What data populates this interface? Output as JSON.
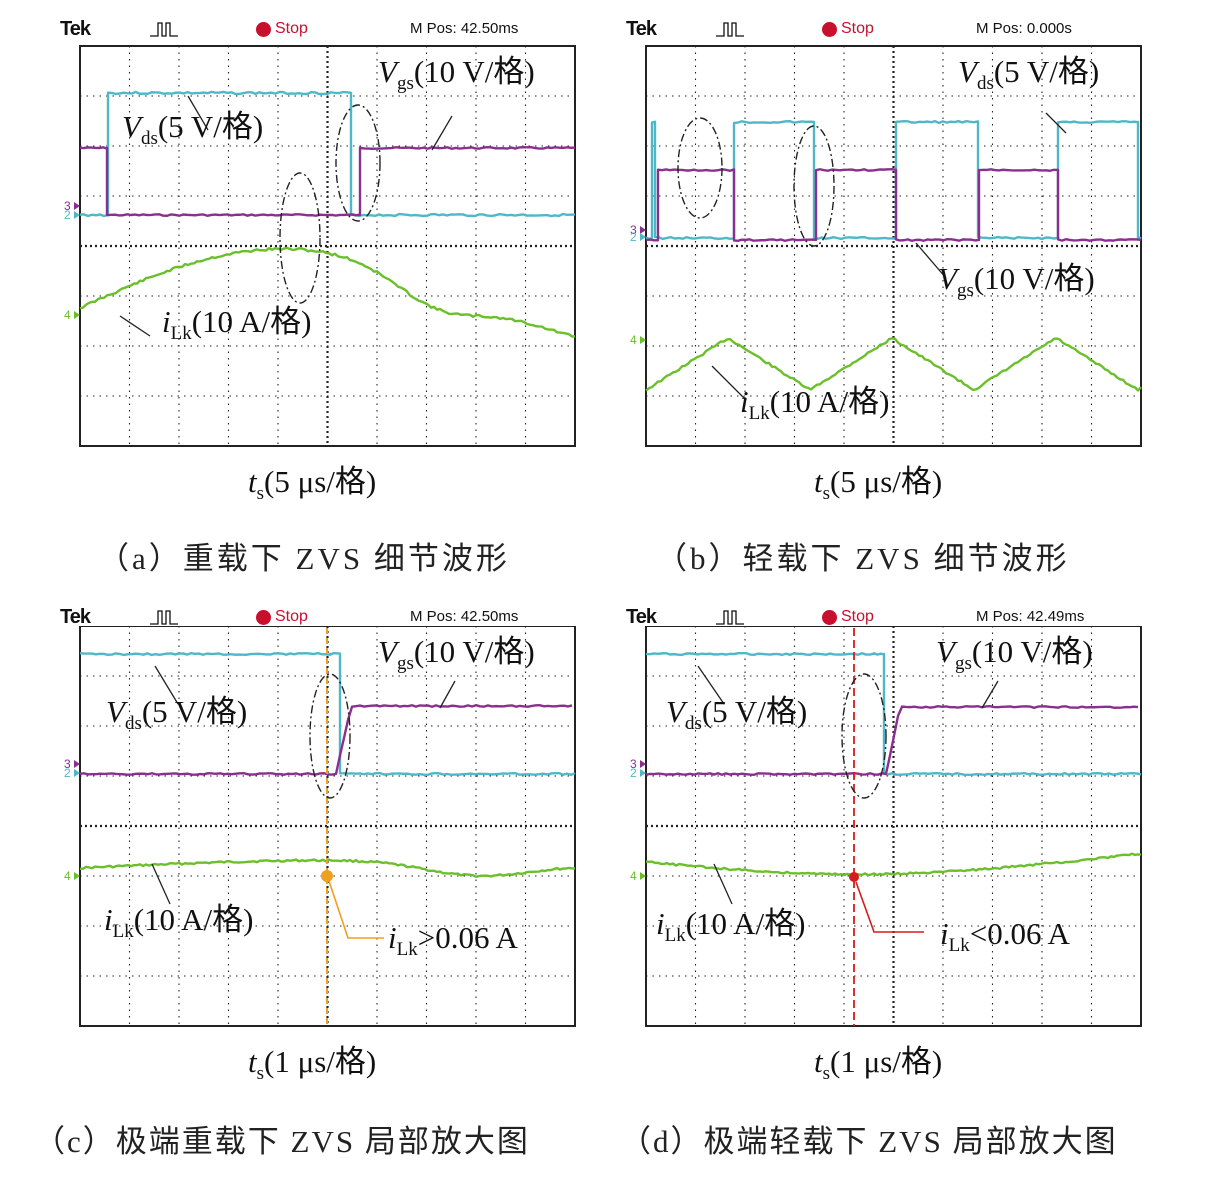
{
  "panels": [
    {
      "id": "a",
      "header": {
        "brand": "Tek",
        "status": "Stop",
        "mpos": "M Pos: 42.50ms"
      },
      "vgs": {
        "name": "V",
        "sub": "gs",
        "scale": "(10 V/格)"
      },
      "vds": {
        "name": "V",
        "sub": "ds",
        "scale": "(5 V/格)"
      },
      "ilk": {
        "name": "i",
        "sub": "Lk",
        "scale": "(10 A/格)"
      },
      "time_axis": {
        "name": "t",
        "sub": "s",
        "scale": "(5 μs/格)"
      },
      "caption": "（a）重载下 ZVS 细节波形"
    },
    {
      "id": "b",
      "header": {
        "brand": "Tek",
        "status": "Stop",
        "mpos": "M Pos: 0.000s"
      },
      "vgs": {
        "name": "V",
        "sub": "gs",
        "scale": "(10 V/格)"
      },
      "vds": {
        "name": "V",
        "sub": "ds",
        "scale": "(5 V/格)"
      },
      "ilk": {
        "name": "i",
        "sub": "Lk",
        "scale": "(10 A/格)"
      },
      "time_axis": {
        "name": "t",
        "sub": "s",
        "scale": "(5 μs/格)"
      },
      "caption": "（b）轻载下 ZVS 细节波形"
    },
    {
      "id": "c",
      "header": {
        "brand": "Tek",
        "status": "Stop",
        "mpos": "M Pos: 42.50ms"
      },
      "vgs": {
        "name": "V",
        "sub": "gs",
        "scale": "(10 V/格)"
      },
      "vds": {
        "name": "V",
        "sub": "ds",
        "scale": "(5 V/格)"
      },
      "ilk": {
        "name": "i",
        "sub": "Lk",
        "scale": "(10 A/格)"
      },
      "time_axis": {
        "name": "t",
        "sub": "s",
        "scale": "(1 μs/格)"
      },
      "annotation": {
        "name": "i",
        "sub": "Lk",
        "text": ">0.06 A",
        "color": "#f0a020"
      },
      "caption": "（c）极端重载下 ZVS 局部放大图"
    },
    {
      "id": "d",
      "header": {
        "brand": "Tek",
        "status": "Stop",
        "mpos": "M Pos: 42.49ms"
      },
      "vgs": {
        "name": "V",
        "sub": "gs",
        "scale": "(10 V/格)"
      },
      "vds": {
        "name": "V",
        "sub": "ds",
        "scale": "(5 V/格)"
      },
      "ilk": {
        "name": "i",
        "sub": "Lk",
        "scale": "(10 A/格)"
      },
      "time_axis": {
        "name": "t",
        "sub": "s",
        "scale": "(1 μs/格)"
      },
      "annotation": {
        "name": "i",
        "sub": "Lk",
        "text": "<0.06 A",
        "color": "#d81b1b"
      },
      "caption": "（d）极端轻载下 ZVS 局部放大图"
    }
  ],
  "colors": {
    "vds": "#4fb8c8",
    "vgs": "#8b2f8e",
    "ilk": "#6abf2a",
    "grid": "#222222",
    "stop": "#c8102e"
  },
  "chart_data": [
    {
      "type": "line",
      "panel": "a",
      "grid": true,
      "x_divisions": 10,
      "y_divisions": 8,
      "series": [
        {
          "name": "Vds",
          "shape": "high pulse from 0.6 to 5.5 div then low"
        },
        {
          "name": "Vgs",
          "shape": "low during Vds high, then high after 5.5 div"
        },
        {
          "name": "iLk",
          "shape": "smooth hump peaking near 2 div then dip near 7 div"
        }
      ]
    },
    {
      "type": "line",
      "panel": "b",
      "grid": true,
      "x_divisions": 10,
      "y_divisions": 8,
      "series": [
        {
          "name": "Vds",
          "shape": "square wave alternating, period ~5 div"
        },
        {
          "name": "Vgs",
          "shape": "complementary square wave"
        },
        {
          "name": "iLk",
          "shape": "triangular wave"
        }
      ]
    },
    {
      "type": "line",
      "panel": "c",
      "grid": true,
      "x_divisions": 10,
      "y_divisions": 8,
      "series": [
        {
          "name": "Vds",
          "shape": "high until 5.1 div then falls"
        },
        {
          "name": "Vgs",
          "shape": "low until 5.3 div then rises"
        },
        {
          "name": "iLk",
          "shape": "nearly flat, slight hump"
        }
      ]
    },
    {
      "type": "line",
      "panel": "d",
      "grid": true,
      "x_divisions": 10,
      "y_divisions": 8,
      "series": [
        {
          "name": "Vds",
          "shape": "high until 4.6 div then falls"
        },
        {
          "name": "Vgs",
          "shape": "low until 4.8 div then rises"
        },
        {
          "name": "iLk",
          "shape": "nearly flat, slight dip"
        }
      ]
    }
  ]
}
